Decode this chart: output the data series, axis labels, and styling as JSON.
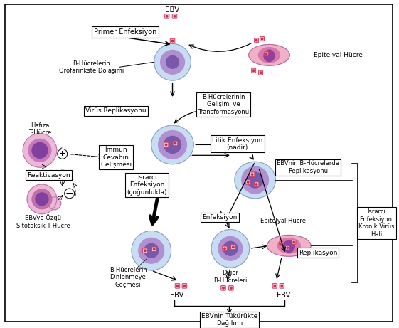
{
  "bg_color": "#ffffff",
  "labels": {
    "ebv_top": "EBV",
    "primer": "Primer Enfeksiyon",
    "b_hucreler_dolasim": "B-Hücrelerin\nOrofarinkste Dolaşımı",
    "epitelyal": "Epitelyal Hücre",
    "vrus_replikasyon": "Virüs Replikasyonu",
    "b_hucre_gelisim": "B-Hücrelerinin\nGelişimi ve\nTransformasyonu",
    "litik": "Litik Enfeksiyon\n(nadir)",
    "immun": "İmmün\nCevabın\nGelişmesi",
    "hafiza_t": "Hafıza\nT-Hücre",
    "israrci_cog": "İsrarcı\nEnfeksiyon\n(çoğunlukla)",
    "ebvnin_b": "EBVnin B-Hücrelerde\nReplikasyonu",
    "reaktivasyon": "Reaktivasyon",
    "ebv_ozgu": "EBVye Özgü\nSitotoksik T-Hücre",
    "b_hucre_dinlenme": "B-Hücrelerin\nDinlenmeye\nGeçmesi",
    "enfeksiyon": "Enfeksiyon",
    "epitelyal2": "Epitelyal Hücre",
    "diger_b": "Diğer\nB-Hücreleri",
    "replikasyon": "Replikasyon",
    "ebv_left": "EBV",
    "ebv_right": "EBV",
    "ebvnin_tukuruk": "EBVnin Tükürükte\nDağılımı",
    "israrci_kronik": "İsrarcı\nEnfeksiyon:\nKronik Virüs\nHali"
  }
}
